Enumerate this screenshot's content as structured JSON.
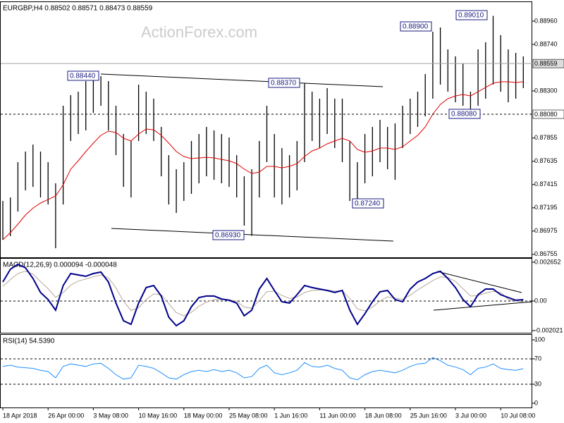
{
  "chart_data": [
    {
      "type": "hilo",
      "title": "EURGBP,H4  0.88502 0.88571 0.88473 0.88559",
      "watermark": "ActionForex.com",
      "categories": [
        "18 Apr 2018",
        null,
        null,
        null,
        null,
        null,
        "26 Apr 00:00",
        null,
        null,
        null,
        null,
        null,
        "3 May 08:00",
        null,
        null,
        null,
        null,
        null,
        "10 May 16:00",
        null,
        null,
        null,
        null,
        null,
        "18 May 00:00",
        null,
        null,
        null,
        null,
        null,
        "25 May 08:00",
        null,
        null,
        null,
        null,
        null,
        "1 Jun 16:00",
        null,
        null,
        null,
        null,
        null,
        "11 Jun 00:00",
        null,
        null,
        null,
        null,
        null,
        "18 Jun 08:00",
        null,
        null,
        null,
        null,
        null,
        "25 Jun 16:00",
        null,
        null,
        null,
        null,
        null,
        "3 Jul 00:00",
        null,
        null,
        null,
        null,
        null,
        "10 Jul 08:00",
        null,
        null,
        null
      ],
      "color": "#000000",
      "high": [
        0.8726,
        0.87293,
        0.87627,
        0.87727,
        0.87793,
        0.87727,
        0.87627,
        0.87427,
        0.8816,
        0.8826,
        0.88293,
        0.88393,
        0.8841,
        0.8844,
        0.88393,
        0.8816,
        0.87893,
        0.87827,
        0.8836,
        0.88293,
        0.88227,
        0.8796,
        0.87693,
        0.8756,
        0.87627,
        0.87827,
        0.87893,
        0.8796,
        0.87927,
        0.87893,
        0.8786,
        0.87693,
        0.87493,
        0.8756,
        0.87827,
        0.8816,
        0.87893,
        0.8776,
        0.87693,
        0.87827,
        0.8837,
        0.88293,
        0.88227,
        0.88327,
        0.88227,
        0.88227,
        0.87827,
        0.87627,
        0.87893,
        0.8796,
        0.88027,
        0.8796,
        0.87993,
        0.8816,
        0.88227,
        0.88293,
        0.8846,
        0.8886,
        0.889,
        0.88693,
        0.88627,
        0.8856,
        0.88293,
        0.88693,
        0.8876,
        0.8901,
        0.88827,
        0.88693,
        0.8866,
        0.88627
      ],
      "low": [
        0.86893,
        0.86927,
        0.8716,
        0.8736,
        0.87393,
        0.87293,
        0.87227,
        0.86813,
        0.87227,
        0.87827,
        0.87893,
        0.87927,
        0.88093,
        0.8816,
        0.87927,
        0.87693,
        0.87393,
        0.87293,
        0.87827,
        0.87893,
        0.87827,
        0.87493,
        0.87227,
        0.87147,
        0.8726,
        0.87327,
        0.87427,
        0.87493,
        0.8746,
        0.87427,
        0.87393,
        0.87293,
        0.87027,
        0.8693,
        0.87293,
        0.87627,
        0.87293,
        0.87227,
        0.87293,
        0.8736,
        0.87627,
        0.87827,
        0.8776,
        0.87893,
        0.8776,
        0.87627,
        0.8726,
        0.8724,
        0.87427,
        0.87493,
        0.87627,
        0.8756,
        0.8746,
        0.8776,
        0.87893,
        0.8796,
        0.8806,
        0.88227,
        0.8836,
        0.88293,
        0.88193,
        0.8816,
        0.8808,
        0.8816,
        0.88227,
        0.8836,
        0.88293,
        0.88193,
        0.88227,
        0.88327
      ],
      "ma": {
        "color": "#e00000",
        "values": [
          0.86893,
          0.8696,
          0.8704,
          0.87127,
          0.87193,
          0.8724,
          0.87273,
          0.87307,
          0.87413,
          0.8756,
          0.8764,
          0.87727,
          0.87807,
          0.8788,
          0.8792,
          0.87907,
          0.87853,
          0.87827,
          0.87893,
          0.8794,
          0.87933,
          0.8788,
          0.87807,
          0.87727,
          0.8768,
          0.8766,
          0.87667,
          0.87673,
          0.87667,
          0.87653,
          0.8764,
          0.87613,
          0.8756,
          0.8752,
          0.87533,
          0.87587,
          0.87587,
          0.87573,
          0.87587,
          0.87613,
          0.8768,
          0.87733,
          0.8776,
          0.878,
          0.87827,
          0.87853,
          0.87827,
          0.87747,
          0.8772,
          0.87733,
          0.8776,
          0.8776,
          0.87747,
          0.87773,
          0.87827,
          0.8788,
          0.8796,
          0.8808,
          0.88173,
          0.88227,
          0.88253,
          0.88267,
          0.88253,
          0.88293,
          0.88333,
          0.88373,
          0.88387,
          0.88387,
          0.8838,
          0.88387
        ]
      },
      "ylim": [
        0.86727,
        0.8914
      ],
      "yticks": [
        {
          "value": 0.8896,
          "label": "0.88960"
        },
        {
          "value": 0.8874,
          "label": "0.88740"
        },
        {
          "value": 0.883,
          "label": "0.88300"
        },
        {
          "value": 0.87855,
          "label": "0.87855"
        },
        {
          "value": 0.87635,
          "label": "0.87635"
        },
        {
          "value": 0.87415,
          "label": "0.87415"
        },
        {
          "value": 0.87195,
          "label": "0.87195"
        },
        {
          "value": 0.86975,
          "label": "0.86975"
        },
        {
          "value": 0.86755,
          "label": "0.86755"
        }
      ],
      "levels": [
        {
          "value": 0.88559,
          "label": "0.88559",
          "style": "solid"
        },
        {
          "value": 0.8808,
          "label": "0.88080",
          "style": "dashed"
        }
      ],
      "annotations": [
        "0.88440",
        "0.88370",
        "0.88900",
        "0.89010",
        "0.88080",
        "0.87240",
        "0.86930"
      ]
    },
    {
      "type": "macd",
      "title": "MACD(12,26,9) 0.000094 -0.000048",
      "macd": {
        "color": "#00008b",
        "values": [
          0.0013,
          0.00217,
          0.00251,
          0.00227,
          0.00154,
          0.00058,
          0.0001,
          -0.00063,
          0.00106,
          0.00188,
          0.00178,
          0.00169,
          0.00188,
          0.00198,
          0.0013,
          -0.00014,
          -0.00135,
          -0.00159,
          -0.00014,
          0.00092,
          0.00106,
          0.00034,
          -0.00111,
          -0.00169,
          -0.00135,
          -0.00039,
          0.00024,
          0.00034,
          0.00034,
          0.00014,
          5e-05,
          -0.00014,
          -0.00101,
          -0.00063,
          0.00082,
          0.00154,
          0.00072,
          -5e-05,
          -0.00014,
          0.00043,
          0.00106,
          0.00092,
          0.00082,
          0.00072,
          0.00058,
          0.00072,
          -0.00063,
          -0.00159,
          -0.00087,
          -5e-05,
          0.00063,
          0.00072,
          0.0001,
          -5e-05,
          0.00082,
          0.0013,
          0.00154,
          0.00188,
          0.00203,
          0.00154,
          0.00092,
          0.0001,
          -0.00039,
          0.00043,
          0.00082,
          0.00082,
          0.00043,
          0.00024,
          5e-05,
          9.4e-05
        ]
      },
      "signal": {
        "color": "#b8a898",
        "values": [
          0.001,
          0.00147,
          0.00188,
          0.00204,
          0.00184,
          0.00133,
          0.00084,
          0.00025,
          0.00057,
          0.00109,
          0.00136,
          0.0015,
          0.00165,
          0.00178,
          0.00159,
          0.00089,
          -1e-05,
          -0.00065,
          -0.00045,
          0.0001,
          0.00048,
          0.00043,
          -0.00018,
          -0.00079,
          -0.00101,
          -0.00077,
          -0.00036,
          -8e-05,
          9e-05,
          0.00011,
          9e-05,
          -1e-05,
          -0.00041,
          -0.0005,
          3e-05,
          0.00064,
          0.00067,
          0.00038,
          0.00017,
          0.00027,
          0.00058,
          0.00072,
          0.00076,
          0.00075,
          0.00068,
          0.0007,
          0.00017,
          -0.00054,
          -0.00067,
          -0.00042,
          0,
          0.00029,
          0.00021,
          0.00011,
          0.0004,
          0.00076,
          0.00108,
          0.0014,
          0.00165,
          0.00161,
          0.00134,
          0.00084,
          0.00034,
          0.00037,
          0.00055,
          0.00066,
          0.00057,
          0.0001,
          1e-05,
          -4.8e-05
        ]
      },
      "ylim": [
        -0.00217,
        0.00289
      ],
      "yticks": [
        0.002652,
        {
          "value": 0,
          "label": "0.00"
        },
        -0.002021
      ],
      "levels": [
        0
      ]
    },
    {
      "type": "rsi",
      "title": "RSI(14) 54.5390",
      "color": "#1e90ff",
      "values": [
        58,
        60,
        57,
        56,
        55,
        52,
        50,
        40,
        58,
        62,
        60,
        58,
        62,
        63,
        55,
        45,
        38,
        40,
        60,
        58,
        55,
        48,
        40,
        38,
        45,
        50,
        52,
        50,
        53,
        50,
        52,
        48,
        40,
        42,
        55,
        60,
        48,
        45,
        48,
        52,
        64,
        58,
        57,
        60,
        55,
        52,
        40,
        37,
        45,
        50,
        52,
        50,
        48,
        52,
        58,
        62,
        63,
        72,
        67,
        60,
        57,
        53,
        45,
        55,
        57,
        62,
        55,
        53,
        52,
        54.539
      ],
      "ylim": [
        -6.7,
        107.8
      ],
      "yticks": [
        100,
        70,
        30,
        0
      ],
      "levels": [
        70,
        30
      ]
    }
  ]
}
